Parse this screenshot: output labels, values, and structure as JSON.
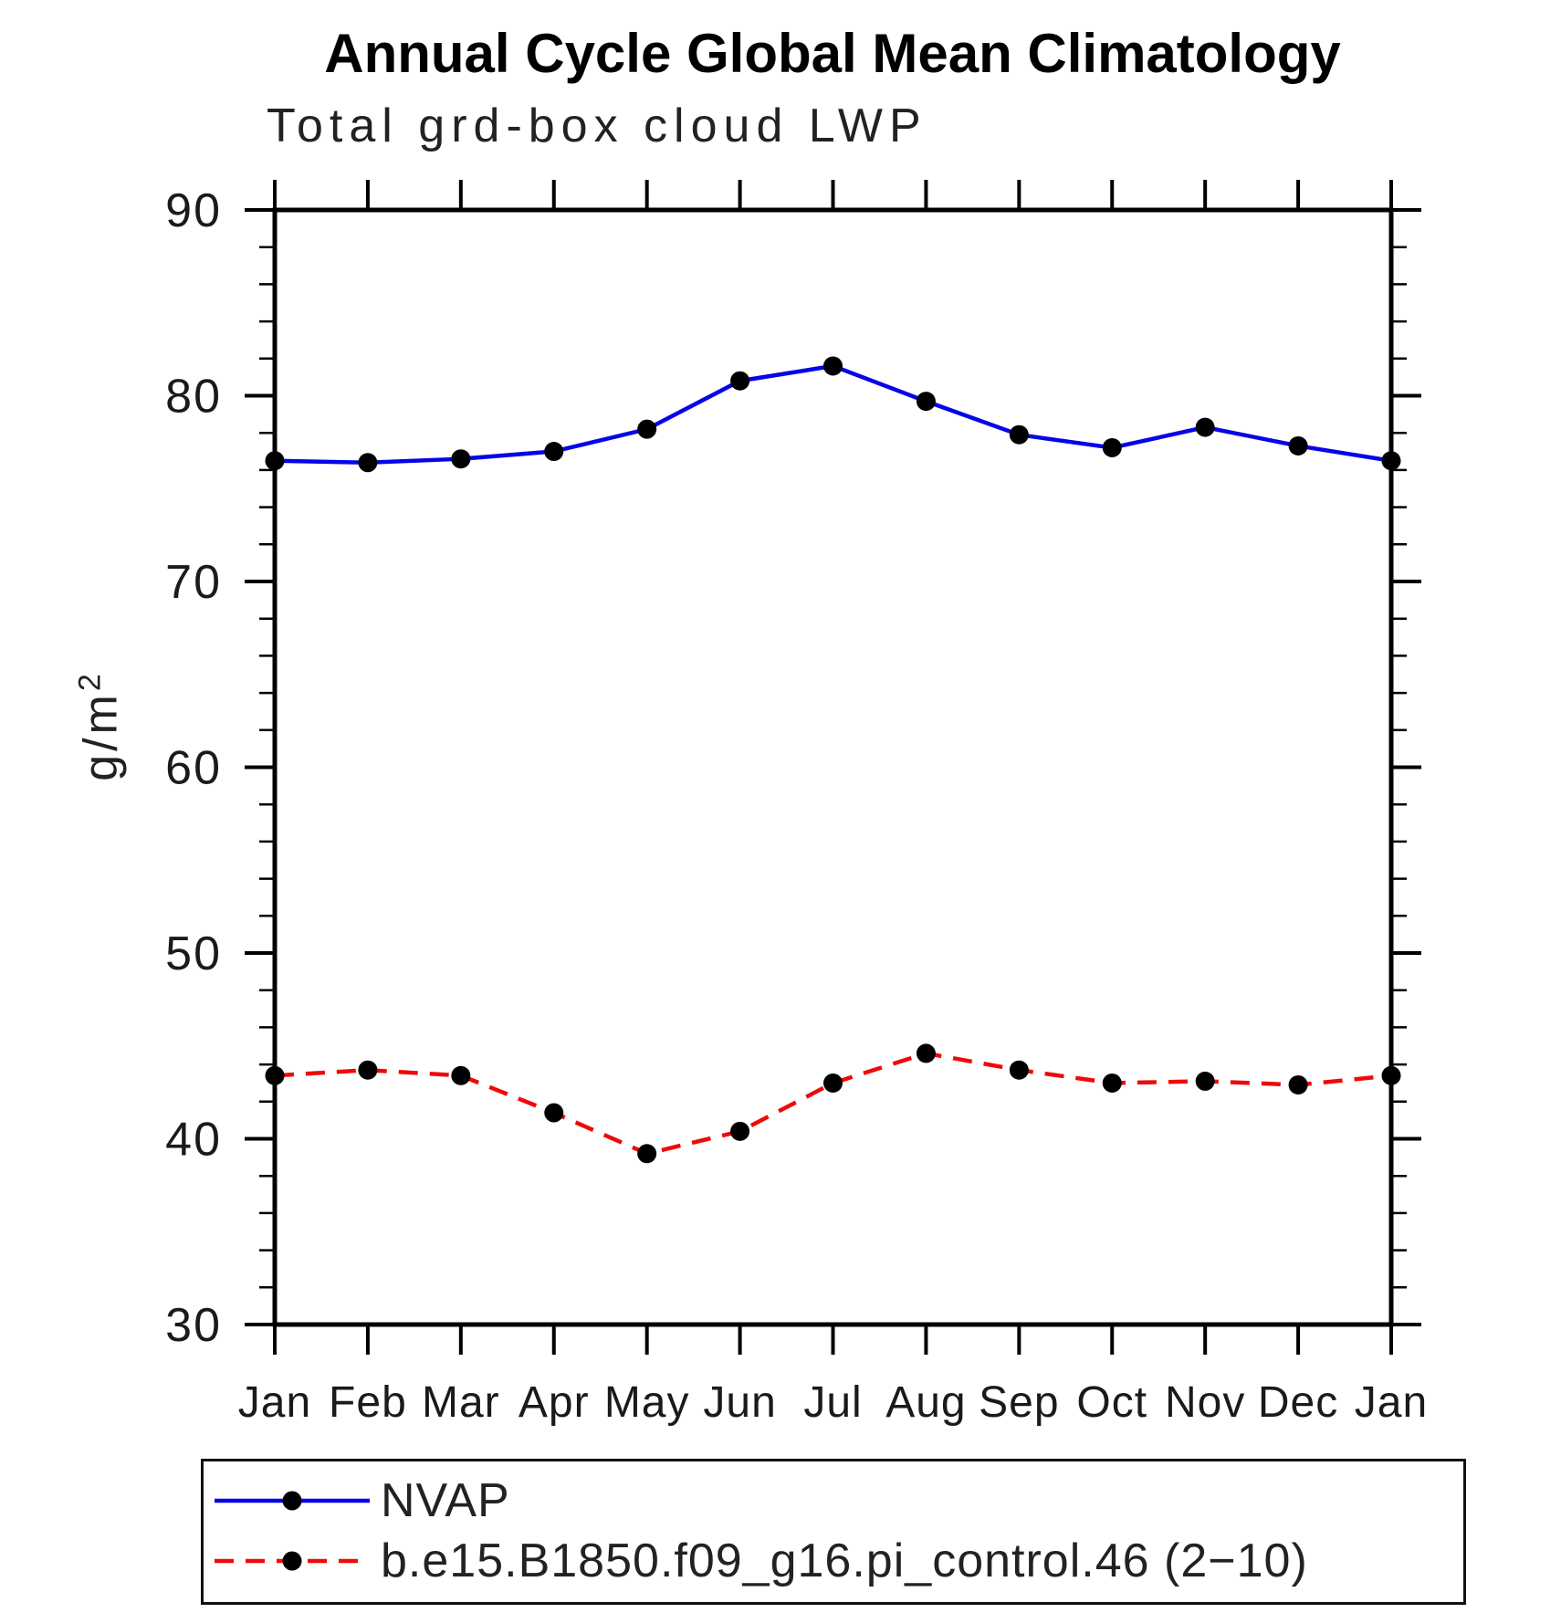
{
  "title": "Annual Cycle Global Mean Climatology",
  "subtitle": "Total grd-box cloud LWP",
  "ylabel": {
    "main": "g/m",
    "sup": "2"
  },
  "chart_data": {
    "type": "line",
    "title": "Annual Cycle Global Mean Climatology",
    "subtitle": "Total grd-box cloud LWP",
    "ylabel": "g/m^2",
    "xlabel": "",
    "categories": [
      "Jan",
      "Feb",
      "Mar",
      "Apr",
      "May",
      "Jun",
      "Jul",
      "Aug",
      "Sep",
      "Oct",
      "Nov",
      "Dec",
      "Jan"
    ],
    "ylim": [
      30,
      90
    ],
    "ytick_major": [
      30,
      40,
      50,
      60,
      70,
      80,
      90
    ],
    "ytick_minor_step": 2,
    "grid": false,
    "legend_position": "bottom-left-box",
    "background": "#ffffff",
    "axis_color": "#000000",
    "text_color": "#1a1a1a",
    "series": [
      {
        "name": "NVAP",
        "color": "#0505e8",
        "style": "solid",
        "marker": "circle",
        "marker_color": "#000000",
        "values": [
          76.5,
          76.4,
          76.6,
          77.0,
          78.2,
          80.8,
          81.6,
          79.7,
          77.9,
          77.2,
          78.3,
          77.3,
          76.5
        ]
      },
      {
        "name": "b.e15.B1850.f09_g16.pi_control.46 (2−10)",
        "color": "#ee0a0a",
        "style": "dashed",
        "marker": "circle",
        "marker_color": "#000000",
        "values": [
          43.4,
          43.7,
          43.4,
          41.4,
          39.2,
          40.4,
          43.0,
          44.6,
          43.7,
          43.0,
          43.1,
          42.9,
          43.4
        ]
      }
    ]
  }
}
